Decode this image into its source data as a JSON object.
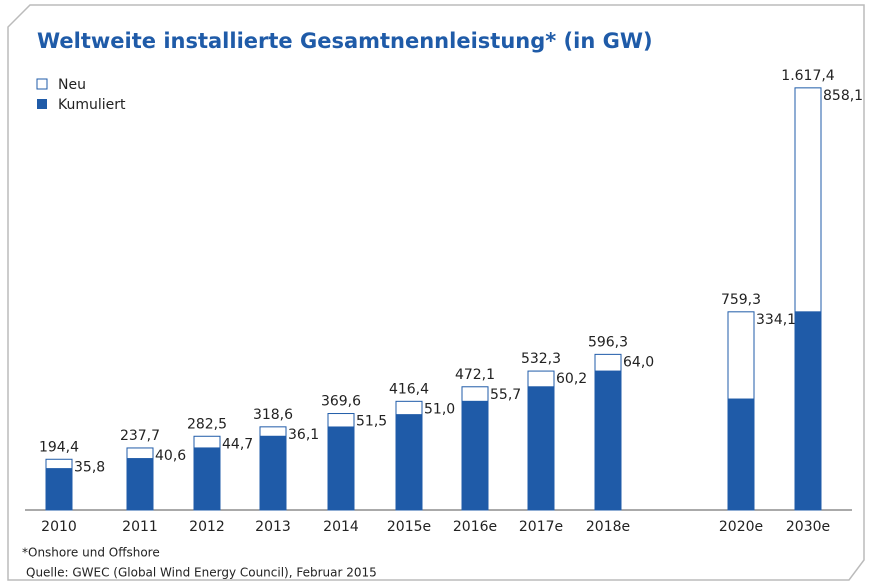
{
  "chart_data": {
    "type": "stacked-bar",
    "title": "Weltweite installierte Gesamtnennleistung* (in GW)",
    "categories": [
      "2010",
      "2011",
      "2012",
      "2013",
      "2014",
      "2015e",
      "2016e",
      "2017e",
      "2018e",
      "2020e",
      "2030e"
    ],
    "series": [
      {
        "name": "Kumuliert",
        "color": "#1f5ba8",
        "values": [
          158.6,
          197.1,
          237.8,
          282.5,
          318.1,
          365.4,
          416.4,
          472.1,
          532.3,
          425.2,
          759.3
        ]
      },
      {
        "name": "Neu",
        "color": "#ffffff",
        "values": [
          35.8,
          40.6,
          44.7,
          36.1,
          51.5,
          51.0,
          55.7,
          60.2,
          64.0,
          334.1,
          858.1
        ],
        "value_labels": [
          "35,8",
          "40,6",
          "44,7",
          "36,1",
          "51,5",
          "51,0",
          "55,7",
          "60,2",
          "64,0",
          "334,1",
          "858,1"
        ]
      }
    ],
    "totals": {
      "values": [
        194.4,
        237.7,
        282.5,
        318.6,
        369.6,
        416.4,
        472.1,
        532.3,
        596.3,
        759.3,
        1617.4
      ],
      "value_labels": [
        "194,4",
        "237,7",
        "282,5",
        "318,6",
        "369,6",
        "416,4",
        "472,1",
        "532,3",
        "596,3",
        "759,3",
        "1.617,4"
      ]
    },
    "note": "*Onshore und Offshore",
    "source": "Quelle: GWEC (Global Wind Energy Council), Februar 2015"
  }
}
